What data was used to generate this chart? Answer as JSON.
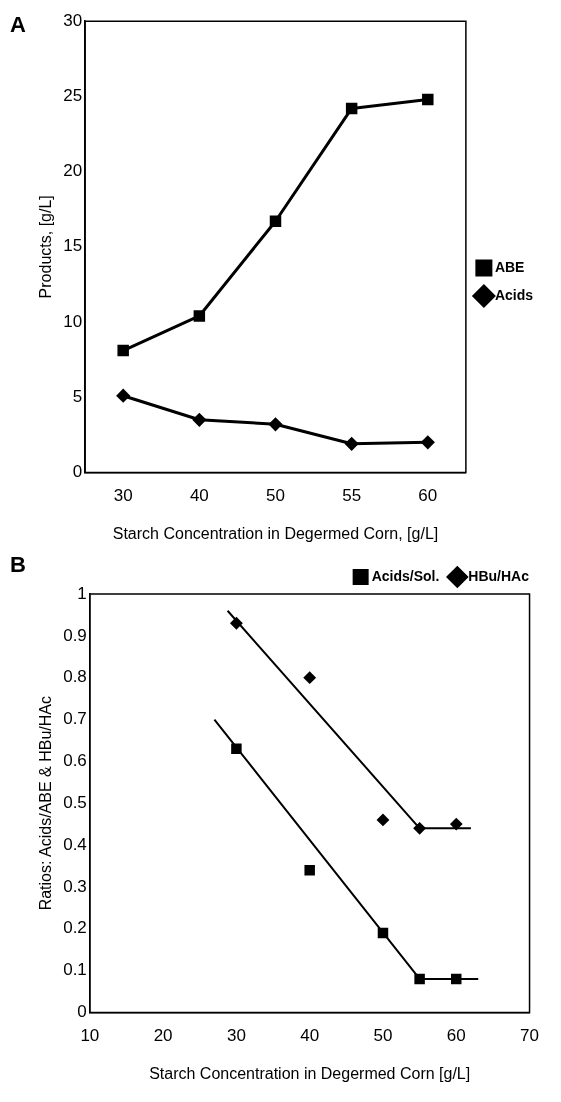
{
  "chart_data": [
    {
      "type": "line",
      "annotations": [
        "A"
      ],
      "xlabel": "Starch Concentration in Degermed Corn, [g/L]",
      "ylabel": "Products, [g/L]",
      "categories": [
        "30",
        "40",
        "50",
        "55",
        "60"
      ],
      "ylim": [
        0,
        30
      ],
      "yticks": [
        0,
        5,
        10,
        15,
        20,
        25,
        30
      ],
      "grid": false,
      "legend": "right",
      "series": [
        {
          "name": "ABE",
          "color": "#000000",
          "marker": "square",
          "values": [
            8.1,
            10.4,
            16.7,
            24.2,
            24.8
          ]
        },
        {
          "name": "Acids",
          "color": "#000000",
          "marker": "diamond",
          "values": [
            5.1,
            3.5,
            3.2,
            1.9,
            2.0
          ]
        }
      ]
    },
    {
      "type": "scatter",
      "annotations": [
        "B"
      ],
      "xlabel": "Starch Concentration in Degermed Corn [g/L]",
      "ylabel": "Ratios: Acids/ABE & HBu/HAc",
      "xlim": [
        10,
        70
      ],
      "xticks": [
        10,
        20,
        30,
        40,
        50,
        60,
        70
      ],
      "ylim": [
        0,
        1
      ],
      "yticks": [
        0,
        0.1,
        0.2,
        0.3,
        0.4,
        0.5,
        0.6,
        0.7,
        0.8,
        0.9,
        1
      ],
      "grid": false,
      "legend": "top right",
      "series": [
        {
          "name": "Acids/Sol.",
          "color": "#000000",
          "marker": "square",
          "x": [
            30,
            40,
            50,
            55,
            60
          ],
          "values": [
            0.63,
            0.34,
            0.19,
            0.08,
            0.08
          ]
        },
        {
          "name": "HBu/HAc",
          "color": "#000000",
          "marker": "diamond",
          "x": [
            30,
            40,
            50,
            55,
            60
          ],
          "values": [
            0.93,
            0.8,
            0.46,
            0.44,
            0.45
          ]
        },
        {
          "type": "line",
          "color": "#000000",
          "marker": "none",
          "x": [
            27,
            55,
            63
          ],
          "values": [
            0.7,
            0.08,
            0.08
          ]
        },
        {
          "type": "line",
          "color": "#000000",
          "marker": "none",
          "x": [
            28.8,
            55,
            62
          ],
          "values": [
            0.96,
            0.44,
            0.44
          ]
        }
      ]
    }
  ]
}
